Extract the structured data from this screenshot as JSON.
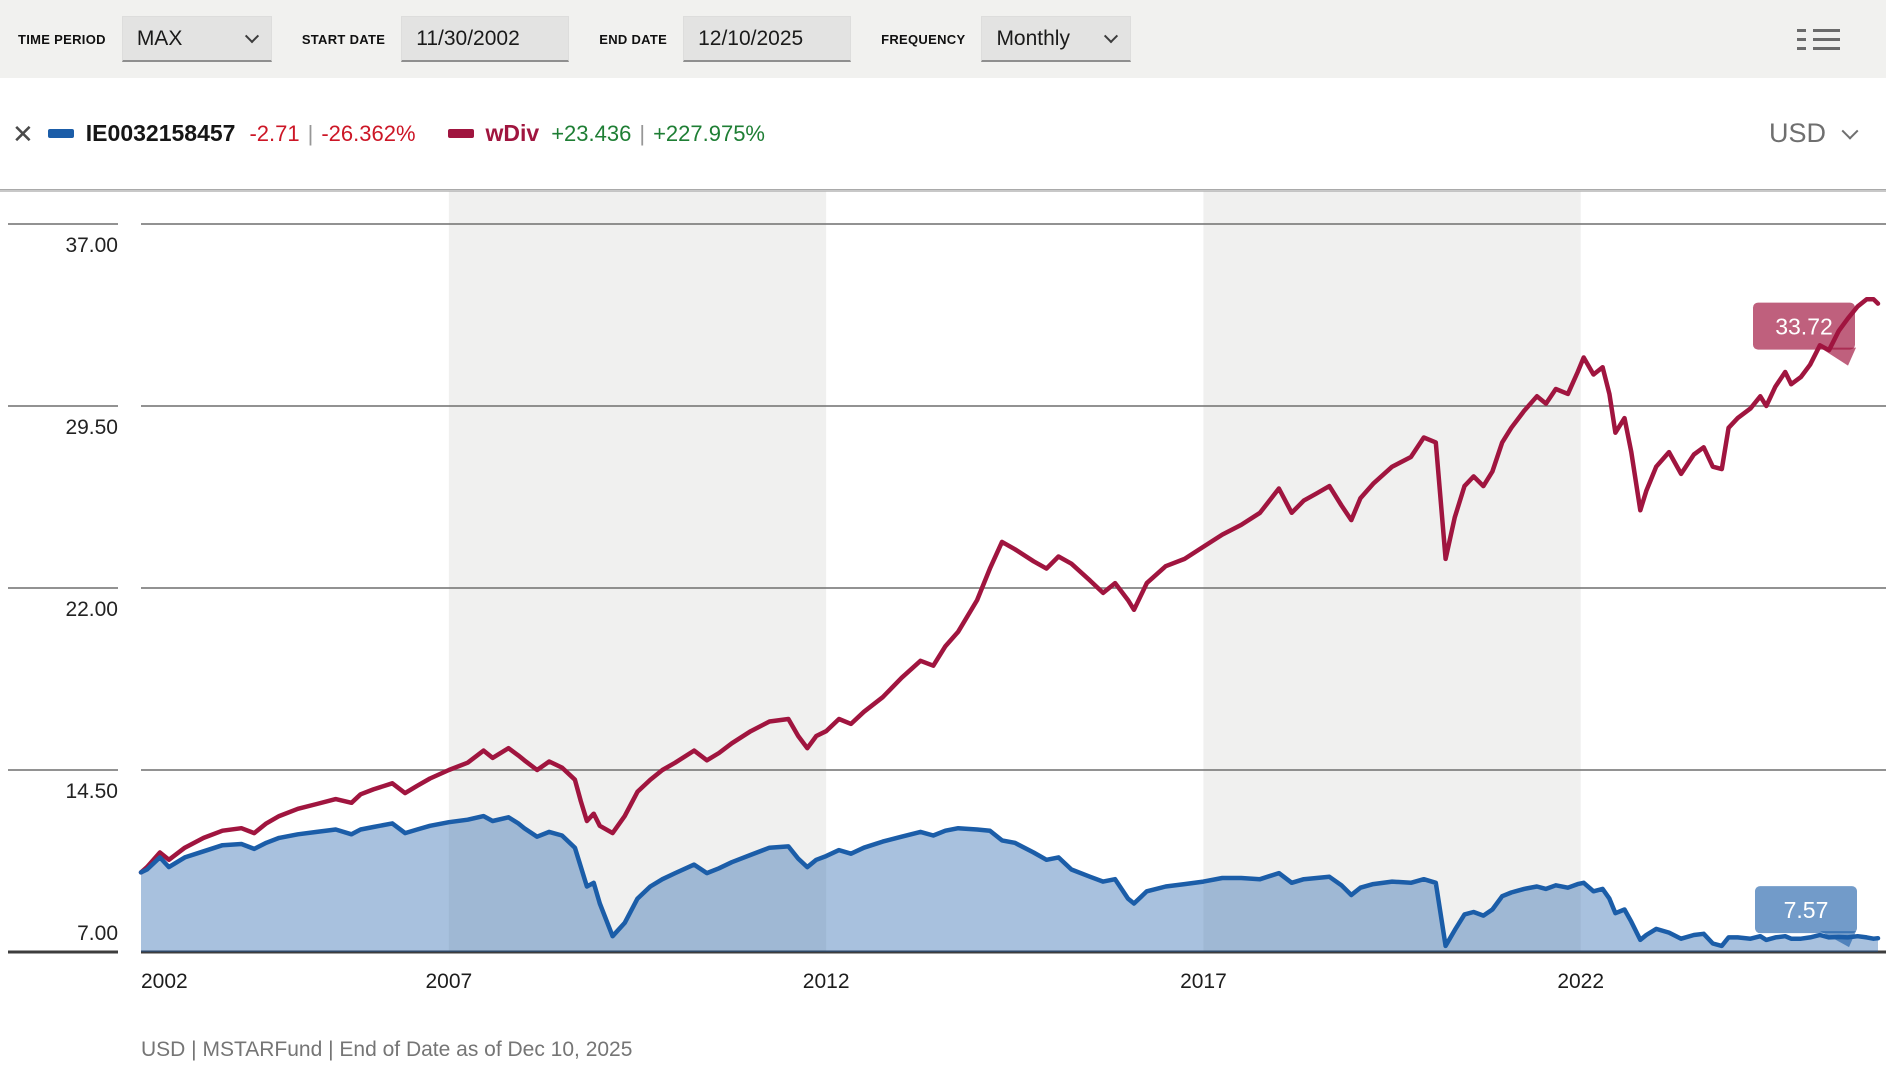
{
  "toolbar": {
    "time_period_label": "TIME PERIOD",
    "time_period_value": "MAX",
    "start_date_label": "START DATE",
    "start_date_value": "11/30/2002",
    "end_date_label": "END DATE",
    "end_date_value": "12/10/2025",
    "frequency_label": "FREQUENCY",
    "frequency_value": "Monthly"
  },
  "icons": {
    "close": "✕",
    "chevron_down": "css rotated-border chevron",
    "list": "three-row list glyph (dash + line)"
  },
  "legend": {
    "separator": "|",
    "series1": {
      "name": "IE0032158457",
      "change": "-2.71",
      "pct": "-26.362%",
      "color": "#1b5da8"
    },
    "series2": {
      "name": "wDiv",
      "change": "+23.436",
      "pct": "+227.975%",
      "color": "#a0153f"
    },
    "currency": "USD"
  },
  "footer": {
    "text": "USD | MSTARFund | End of Date as of Dec 10, 2025"
  },
  "chart_data": {
    "type": "line",
    "title": "Fund price vs total return (wDiv), USD, monthly, 11/30/2002 - 12/10/2025",
    "x_range": [
      2002.92,
      2025.94
    ],
    "ylim": [
      7.0,
      37.0
    ],
    "y_axis": {
      "tick_labels": [
        "37.00",
        "29.50",
        "22.00",
        "14.50",
        "7.00"
      ],
      "tick_values": [
        37.0,
        29.5,
        22.0,
        14.5,
        7.0
      ]
    },
    "x_axis": {
      "tick_years": [
        2002,
        2007,
        2012,
        2017,
        2022
      ]
    },
    "bands": [
      [
        2007,
        2012
      ],
      [
        2017,
        2022
      ]
    ],
    "band_color": "#f0f0ef",
    "grid_color": "#6f6f6f",
    "baseline_color": "#3d3d3d",
    "series": [
      {
        "name": "IE0032158457",
        "color": "#1b5da8",
        "area": true,
        "area_opacity": 0.38,
        "end_label": "7.57",
        "badge_opacity": 0.62
      },
      {
        "name": "wDiv",
        "color": "#a0153f",
        "area": false,
        "area_opacity": 0,
        "end_label": "33.72",
        "badge_opacity": 0.68
      }
    ],
    "points": [
      [
        2002.92,
        10.28,
        10.28
      ],
      [
        2003.0,
        10.5,
        10.4
      ],
      [
        2003.17,
        11.1,
        10.9
      ],
      [
        2003.29,
        10.8,
        10.5
      ],
      [
        2003.5,
        11.3,
        10.9
      ],
      [
        2003.75,
        11.7,
        11.15
      ],
      [
        2004.0,
        12.0,
        11.4
      ],
      [
        2004.25,
        12.1,
        11.45
      ],
      [
        2004.42,
        11.9,
        11.25
      ],
      [
        2004.58,
        12.3,
        11.5
      ],
      [
        2004.75,
        12.6,
        11.7
      ],
      [
        2005.0,
        12.9,
        11.85
      ],
      [
        2005.25,
        13.1,
        11.95
      ],
      [
        2005.5,
        13.3,
        12.05
      ],
      [
        2005.71,
        13.15,
        11.85
      ],
      [
        2005.83,
        13.5,
        12.05
      ],
      [
        2006.0,
        13.7,
        12.15
      ],
      [
        2006.25,
        13.95,
        12.3
      ],
      [
        2006.42,
        13.55,
        11.9
      ],
      [
        2006.58,
        13.85,
        12.05
      ],
      [
        2006.75,
        14.15,
        12.2
      ],
      [
        2007.0,
        14.5,
        12.35
      ],
      [
        2007.25,
        14.8,
        12.45
      ],
      [
        2007.46,
        15.3,
        12.6
      ],
      [
        2007.58,
        15.0,
        12.4
      ],
      [
        2007.79,
        15.4,
        12.55
      ],
      [
        2007.92,
        15.1,
        12.3
      ],
      [
        2008.0,
        14.9,
        12.1
      ],
      [
        2008.17,
        14.5,
        11.75
      ],
      [
        2008.33,
        14.85,
        11.95
      ],
      [
        2008.5,
        14.6,
        11.8
      ],
      [
        2008.67,
        14.1,
        11.3
      ],
      [
        2008.75,
        13.2,
        10.5
      ],
      [
        2008.83,
        12.4,
        9.7
      ],
      [
        2008.92,
        12.7,
        9.85
      ],
      [
        2009.0,
        12.2,
        9.0
      ],
      [
        2009.17,
        11.9,
        7.65
      ],
      [
        2009.33,
        12.6,
        8.2
      ],
      [
        2009.5,
        13.6,
        9.2
      ],
      [
        2009.67,
        14.1,
        9.7
      ],
      [
        2009.83,
        14.5,
        10.0
      ],
      [
        2010.0,
        14.8,
        10.25
      ],
      [
        2010.25,
        15.3,
        10.6
      ],
      [
        2010.42,
        14.9,
        10.25
      ],
      [
        2010.58,
        15.2,
        10.45
      ],
      [
        2010.75,
        15.6,
        10.7
      ],
      [
        2011.0,
        16.1,
        11.0
      ],
      [
        2011.25,
        16.5,
        11.3
      ],
      [
        2011.5,
        16.6,
        11.35
      ],
      [
        2011.63,
        15.9,
        10.85
      ],
      [
        2011.75,
        15.4,
        10.5
      ],
      [
        2011.87,
        15.9,
        10.8
      ],
      [
        2012.0,
        16.1,
        10.95
      ],
      [
        2012.17,
        16.6,
        11.2
      ],
      [
        2012.33,
        16.4,
        11.05
      ],
      [
        2012.5,
        16.9,
        11.3
      ],
      [
        2012.75,
        17.5,
        11.55
      ],
      [
        2013.0,
        18.3,
        11.75
      ],
      [
        2013.25,
        19.0,
        11.95
      ],
      [
        2013.42,
        18.8,
        11.8
      ],
      [
        2013.58,
        19.6,
        12.0
      ],
      [
        2013.75,
        20.2,
        12.1
      ],
      [
        2014.0,
        21.5,
        12.05
      ],
      [
        2014.17,
        22.8,
        12.0
      ],
      [
        2014.33,
        23.9,
        11.6
      ],
      [
        2014.5,
        23.6,
        11.5
      ],
      [
        2014.75,
        23.1,
        11.1
      ],
      [
        2014.92,
        22.8,
        10.8
      ],
      [
        2015.08,
        23.3,
        10.9
      ],
      [
        2015.25,
        23.0,
        10.4
      ],
      [
        2015.5,
        22.3,
        10.1
      ],
      [
        2015.67,
        21.8,
        9.9
      ],
      [
        2015.83,
        22.2,
        10.0
      ],
      [
        2016.0,
        21.5,
        9.2
      ],
      [
        2016.08,
        21.1,
        9.0
      ],
      [
        2016.25,
        22.2,
        9.5
      ],
      [
        2016.5,
        22.9,
        9.7
      ],
      [
        2016.75,
        23.2,
        9.8
      ],
      [
        2017.0,
        23.7,
        9.9
      ],
      [
        2017.25,
        24.2,
        10.05
      ],
      [
        2017.5,
        24.6,
        10.05
      ],
      [
        2017.75,
        25.1,
        10.0
      ],
      [
        2018.0,
        26.1,
        10.25
      ],
      [
        2018.17,
        25.1,
        9.85
      ],
      [
        2018.33,
        25.6,
        10.0
      ],
      [
        2018.5,
        25.9,
        10.05
      ],
      [
        2018.67,
        26.2,
        10.1
      ],
      [
        2018.83,
        25.4,
        9.75
      ],
      [
        2018.96,
        24.8,
        9.35
      ],
      [
        2019.08,
        25.7,
        9.65
      ],
      [
        2019.25,
        26.3,
        9.8
      ],
      [
        2019.5,
        27.0,
        9.9
      ],
      [
        2019.75,
        27.4,
        9.85
      ],
      [
        2019.92,
        28.2,
        10.0
      ],
      [
        2020.08,
        28.0,
        9.85
      ],
      [
        2020.21,
        23.2,
        7.25
      ],
      [
        2020.33,
        24.9,
        7.9
      ],
      [
        2020.46,
        26.2,
        8.55
      ],
      [
        2020.58,
        26.6,
        8.65
      ],
      [
        2020.71,
        26.2,
        8.5
      ],
      [
        2020.83,
        26.8,
        8.75
      ],
      [
        2020.96,
        28.0,
        9.3
      ],
      [
        2021.08,
        28.6,
        9.45
      ],
      [
        2021.25,
        29.3,
        9.6
      ],
      [
        2021.42,
        29.9,
        9.7
      ],
      [
        2021.54,
        29.6,
        9.6
      ],
      [
        2021.67,
        30.2,
        9.75
      ],
      [
        2021.83,
        30.0,
        9.65
      ],
      [
        2021.96,
        30.9,
        9.8
      ],
      [
        2022.04,
        31.5,
        9.85
      ],
      [
        2022.17,
        30.8,
        9.5
      ],
      [
        2022.29,
        31.1,
        9.6
      ],
      [
        2022.38,
        30.0,
        9.2
      ],
      [
        2022.46,
        28.4,
        8.6
      ],
      [
        2022.58,
        29.0,
        8.75
      ],
      [
        2022.67,
        27.6,
        8.25
      ],
      [
        2022.79,
        25.2,
        7.5
      ],
      [
        2022.87,
        26.0,
        7.7
      ],
      [
        2023.0,
        27.0,
        7.95
      ],
      [
        2023.17,
        27.6,
        7.8
      ],
      [
        2023.33,
        26.7,
        7.55
      ],
      [
        2023.5,
        27.5,
        7.7
      ],
      [
        2023.63,
        27.8,
        7.75
      ],
      [
        2023.75,
        27.0,
        7.35
      ],
      [
        2023.87,
        26.9,
        7.25
      ],
      [
        2023.96,
        28.6,
        7.6
      ],
      [
        2024.08,
        29.0,
        7.6
      ],
      [
        2024.25,
        29.4,
        7.55
      ],
      [
        2024.38,
        29.9,
        7.65
      ],
      [
        2024.46,
        29.5,
        7.5
      ],
      [
        2024.58,
        30.3,
        7.6
      ],
      [
        2024.71,
        30.9,
        7.65
      ],
      [
        2024.79,
        30.4,
        7.55
      ],
      [
        2024.92,
        30.7,
        7.55
      ],
      [
        2025.04,
        31.2,
        7.6
      ],
      [
        2025.17,
        32.0,
        7.7
      ],
      [
        2025.29,
        31.8,
        7.6
      ],
      [
        2025.42,
        32.6,
        7.62
      ],
      [
        2025.54,
        33.1,
        7.6
      ],
      [
        2025.67,
        33.6,
        7.65
      ],
      [
        2025.79,
        33.9,
        7.6
      ],
      [
        2025.88,
        33.9,
        7.55
      ],
      [
        2025.94,
        33.72,
        7.57
      ]
    ]
  }
}
